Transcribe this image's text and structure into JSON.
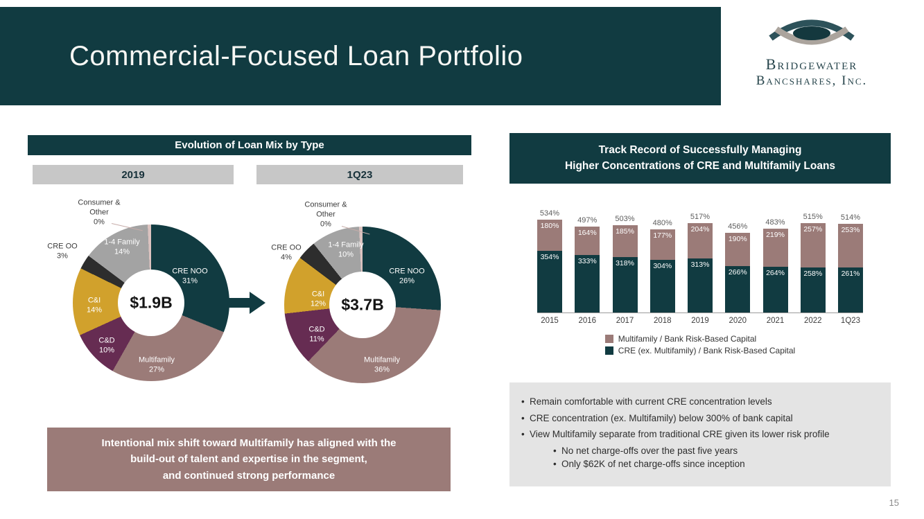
{
  "slide": {
    "title": "Commercial-Focused Loan Portfolio",
    "page_number": "15"
  },
  "logo": {
    "name_line1": "Bridgewater",
    "name_line2": "Bancshares, Inc."
  },
  "left_panel": {
    "header": "Evolution of Loan Mix by Type",
    "note": "Intentional mix shift toward Multifamily has aligned with the\nbuild-out of talent and expertise in the segment,\nand continued strong performance"
  },
  "right_panel": {
    "header": "Track Record of Successfully Managing\nHigher Concentrations of CRE and Multifamily Loans",
    "bullets": [
      {
        "level": 1,
        "text": "Remain comfortable with current CRE concentration levels"
      },
      {
        "level": 1,
        "text": "CRE concentration (ex. Multifamily) below 300% of bank capital"
      },
      {
        "level": 1,
        "text": "View Multifamily separate from traditional CRE given its lower risk profile"
      },
      {
        "level": 2,
        "text": "No net charge-offs over the past five years"
      },
      {
        "level": 2,
        "text": "Only $62K of net charge-offs since inception"
      }
    ]
  },
  "chart_data": [
    {
      "type": "pie",
      "title": "2019",
      "center_label": "$1.9B",
      "categories": [
        "CRE NOO",
        "Multifamily",
        "C&D",
        "C&I",
        "CRE OO",
        "1-4 Family",
        "Consumer & Other"
      ],
      "values": [
        31,
        27,
        10,
        14,
        3,
        14,
        0
      ],
      "unit": "%",
      "colors": [
        "#113b41",
        "#9b7b78",
        "#662c52",
        "#d1a12c",
        "#2d2d2d",
        "#a3a3a3",
        "#dcc3c0"
      ]
    },
    {
      "type": "pie",
      "title": "1Q23",
      "center_label": "$3.7B",
      "categories": [
        "CRE NOO",
        "Multifamily",
        "C&D",
        "C&I",
        "CRE OO",
        "1-4 Family",
        "Consumer & Other"
      ],
      "values": [
        26,
        36,
        11,
        12,
        4,
        10,
        0
      ],
      "unit": "%",
      "colors": [
        "#113b41",
        "#9b7b78",
        "#662c52",
        "#d1a12c",
        "#2d2d2d",
        "#a3a3a3",
        "#dcc3c0"
      ]
    },
    {
      "type": "bar",
      "stacked": true,
      "title": "Track Record of Successfully Managing Higher Concentrations of CRE and Multifamily Loans",
      "categories": [
        "2015",
        "2016",
        "2017",
        "2018",
        "2019",
        "2020",
        "2021",
        "2022",
        "1Q23"
      ],
      "series": [
        {
          "name": "Multifamily / Bank Risk-Based Capital",
          "color": "#9b7b78",
          "values": [
            180,
            164,
            185,
            177,
            204,
            190,
            219,
            257,
            253
          ]
        },
        {
          "name": "CRE (ex. Multifamily) / Bank Risk-Based Capital",
          "color": "#113b41",
          "values": [
            354,
            333,
            318,
            304,
            313,
            266,
            264,
            258,
            261
          ]
        }
      ],
      "totals": [
        "534%",
        "497%",
        "503%",
        "480%",
        "517%",
        "456%",
        "483%",
        "515%",
        "514%"
      ],
      "unit": "%",
      "legend_position": "bottom",
      "ylim": [
        0,
        560
      ],
      "grid": false
    }
  ]
}
